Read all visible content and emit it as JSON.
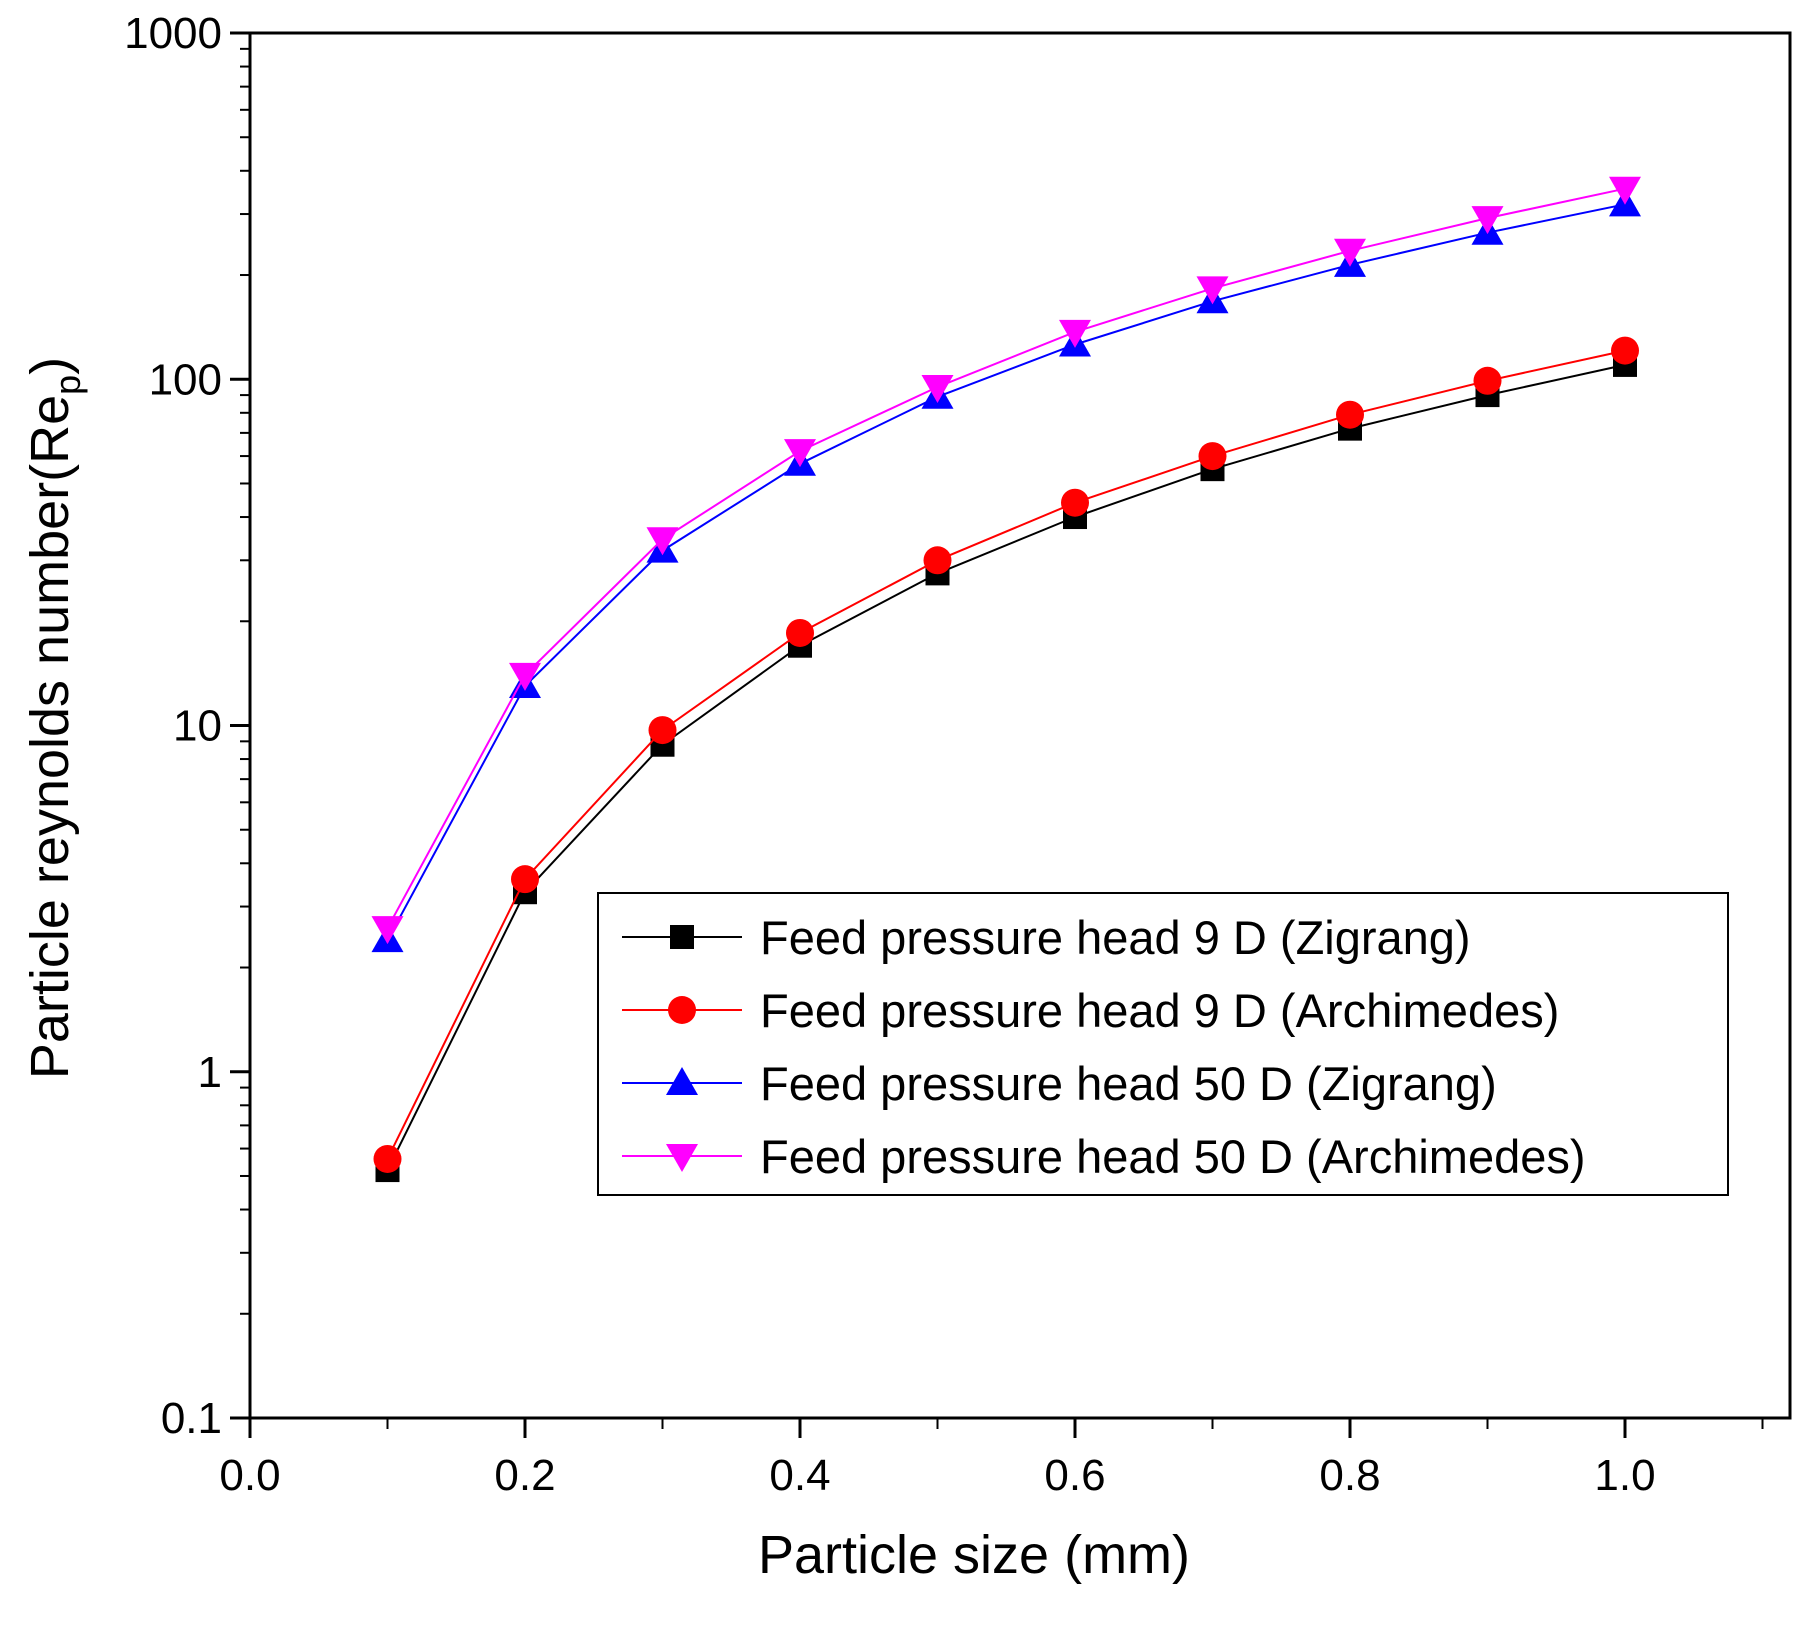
{
  "chart_data": {
    "type": "line",
    "title": "",
    "xlabel": "Particle size (mm)",
    "ylabel": "Particle reynolds number(Re",
    "ylabel_subscript": "p",
    "ylabel_close": ")",
    "xlim": [
      0.0,
      1.12
    ],
    "ylim": [
      0.1,
      1000
    ],
    "yscale": "log",
    "x_ticks": [
      0.0,
      0.2,
      0.4,
      0.6,
      0.8,
      1.0
    ],
    "x_tick_labels": [
      "0.0",
      "0.2",
      "0.4",
      "0.6",
      "0.8",
      "1.0"
    ],
    "y_ticks": [
      0.1,
      1,
      10,
      100,
      1000
    ],
    "y_tick_labels": [
      "0.1",
      "1",
      "10",
      "100",
      "1000"
    ],
    "grid": false,
    "legend_position": "right-center",
    "x": [
      0.1,
      0.2,
      0.3,
      0.4,
      0.5,
      0.6,
      0.7,
      0.8,
      0.9,
      1.0
    ],
    "series": [
      {
        "name": "Feed pressure head 9 D (Zigrang)",
        "color": "#000000",
        "marker": "square",
        "values": [
          0.52,
          3.3,
          8.8,
          17.0,
          27.5,
          40.0,
          55.0,
          72.0,
          90.0,
          110.0
        ]
      },
      {
        "name": "Feed pressure head 9 D (Archimedes)",
        "color": "#ff0000",
        "marker": "circle",
        "values": [
          0.56,
          3.6,
          9.7,
          18.5,
          30.0,
          44.0,
          60.0,
          79.0,
          99.0,
          121.0
        ]
      },
      {
        "name": "Feed pressure head 50 D (Zigrang)",
        "color": "#0000ff",
        "marker": "triangle-up",
        "values": [
          2.4,
          13.0,
          32.0,
          57.0,
          89.0,
          126.0,
          168.0,
          214.0,
          265.0,
          320.0
        ]
      },
      {
        "name": "Feed pressure head 50 D (Archimedes)",
        "color": "#ff00ff",
        "marker": "triangle-down",
        "values": [
          2.6,
          14.0,
          34.5,
          62.0,
          95.0,
          137.0,
          183.0,
          235.0,
          292.0,
          355.0
        ]
      }
    ]
  }
}
